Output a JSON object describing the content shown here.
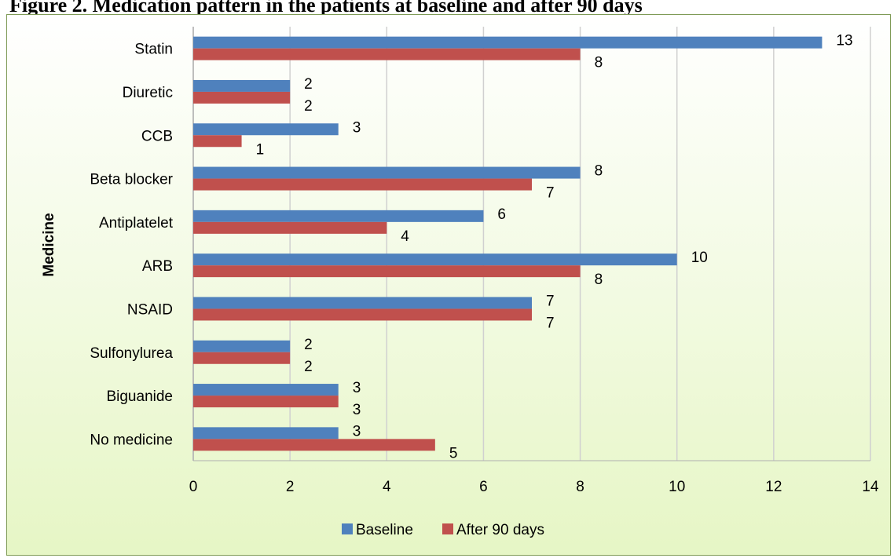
{
  "header": {
    "title": "Figure 2. Medication pattern in the patients at baseline and after 90 days"
  },
  "chart_data": {
    "type": "bar",
    "orientation": "horizontal",
    "ylabel": "Medicine",
    "categories": [
      "Statin",
      "Diuretic",
      "CCB",
      "Beta blocker",
      "Antiplatelet",
      "ARB",
      "NSAID",
      "Sulfonylurea",
      "Biguanide",
      "No medicine"
    ],
    "series": [
      {
        "name": "Baseline",
        "color": "#4f81bd",
        "values": [
          13,
          2,
          3,
          8,
          6,
          10,
          7,
          2,
          3,
          3
        ]
      },
      {
        "name": "After 90 days",
        "color": "#c0504d",
        "values": [
          8,
          2,
          1,
          7,
          4,
          8,
          7,
          2,
          3,
          5
        ]
      }
    ],
    "xlim": [
      0,
      14
    ],
    "xticks": [
      "0",
      "2",
      "4",
      "6",
      "8",
      "10",
      "12",
      "14"
    ],
    "grid": true,
    "legend_position": "bottom"
  }
}
